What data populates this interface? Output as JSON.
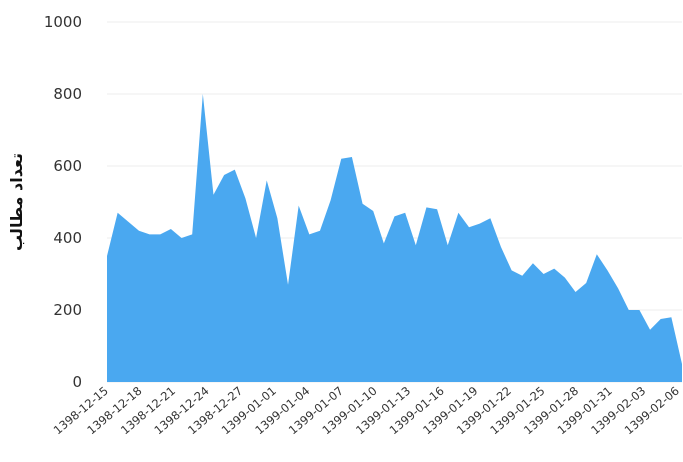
{
  "chart_data": {
    "type": "area",
    "title": "",
    "xlabel": "",
    "ylabel": "تعداد مطالب",
    "ylim": [
      0,
      1000
    ],
    "yticks": [
      0,
      200,
      400,
      600,
      800,
      1000
    ],
    "grid": true,
    "area_color": "#4aa8f0",
    "x_tick_labels": [
      "1398-12-15",
      "1398-12-18",
      "1398-12-21",
      "1398-12-24",
      "1398-12-27",
      "1399-01-01",
      "1399-01-04",
      "1399-01-07",
      "1399-01-10",
      "1399-01-13",
      "1399-01-16",
      "1399-01-19",
      "1399-01-22",
      "1399-01-25",
      "1399-01-28",
      "1399-01-31",
      "1399-02-03",
      "1399-02-06"
    ],
    "series": [
      {
        "values": [
          350,
          470,
          445,
          420,
          410,
          410,
          425,
          400,
          410,
          800,
          520,
          575,
          590,
          510,
          400,
          560,
          455,
          270,
          490,
          410,
          420,
          505,
          620,
          625,
          495,
          475,
          385,
          460,
          470,
          380,
          485,
          480,
          380,
          470,
          430,
          440,
          455,
          375,
          310,
          295,
          330,
          300,
          315,
          290,
          250,
          275,
          355,
          310,
          260,
          200,
          200,
          145,
          175,
          180,
          50
        ]
      }
    ]
  }
}
